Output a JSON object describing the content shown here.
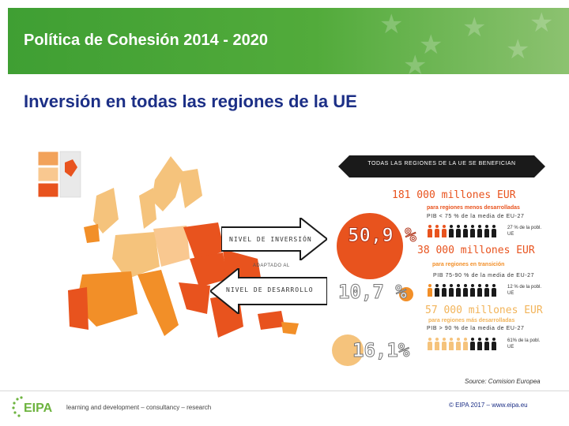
{
  "header": {
    "title": "Política de Cohesión 2014 - 2020"
  },
  "subtitle": "Inversión en todas las regiones de la UE",
  "ribbon": {
    "text": "TODAS LAS REGIONES DE LA UE SE BENEFICIAN"
  },
  "arrows": {
    "investment": "NIVEL DE INVERSIÓN",
    "adapted": "ADAPTADO AL",
    "development": "NIVEL DE DESARROLLO"
  },
  "regions": [
    {
      "amount": "181 000 millones EUR",
      "category": "para regiones menos desarrolladas",
      "gdp": "PIB < 75 % de la media de EU-27",
      "percent": "50,9 %",
      "population": "27 % de la pobl. UE",
      "color": "#e8531e",
      "share": 0.509
    },
    {
      "amount": "38 000 millones EUR",
      "category": "para regiones en transición",
      "gdp": "PIB 75-90 % de la media de EU-27",
      "percent": "10,7 %",
      "population": "12 % de la pobl. UE",
      "color": "#f28f28",
      "share": 0.107
    },
    {
      "amount": "57 000 millones EUR",
      "category": "para regiones más desarrolladas",
      "gdp": "PIB > 90 % de la media de EU-27",
      "percent": "16,1%",
      "population": "61% de la pobl. UE",
      "color": "#f5c37c",
      "share": 0.161
    }
  ],
  "source": "Source: Comision Europea",
  "footer": {
    "logo": "EIPA",
    "tagline": "learning and development – consultancy – research",
    "copyright": "© EIPA 2017 – www.eipa.eu"
  }
}
